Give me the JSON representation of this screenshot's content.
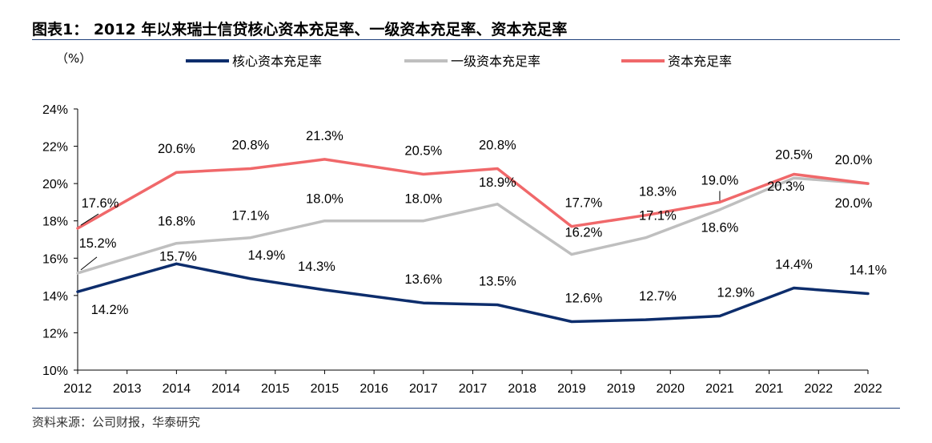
{
  "title": "图表1： 2012 年以来瑞士信贷核心资本充足率、一级资本充足率、资本充足率",
  "source": "资料来源：公司财报，华泰研究",
  "chart_data": {
    "type": "line",
    "unit_label": "（%）",
    "x_tick_labels": [
      "2012",
      "2013",
      "2014",
      "2014",
      "2015",
      "2015",
      "2016",
      "2017",
      "2017",
      "2018",
      "2019",
      "2019",
      "2020",
      "2021",
      "2021",
      "2022",
      "2022"
    ],
    "ylim": [
      10,
      24
    ],
    "y_ticks": [
      10,
      12,
      14,
      16,
      18,
      20,
      22,
      24
    ],
    "y_tick_labels": [
      "10%",
      "12%",
      "14%",
      "16%",
      "18%",
      "20%",
      "22%",
      "24%"
    ],
    "grid": false,
    "legend_position": "top",
    "series": [
      {
        "name": "核心资本充足率",
        "color": "#0d2d6c",
        "values": [
          14.2,
          15.7,
          14.9,
          14.3,
          13.6,
          13.5,
          12.6,
          12.7,
          12.9,
          14.4,
          14.1
        ],
        "labels": [
          "14.2%",
          "",
          "14.9%",
          "14.3%",
          "13.6%",
          "13.5%",
          "12.6%",
          "12.7%",
          "12.9%",
          "14.4%",
          "14.1%"
        ]
      },
      {
        "name": "一级资本充足率",
        "color": "#bfbfbf",
        "values": [
          15.2,
          16.8,
          17.1,
          18.0,
          18.0,
          18.9,
          16.2,
          17.1,
          18.6,
          20.3,
          20.0
        ],
        "labels": [
          "15.2%",
          "16.8%",
          "17.1%",
          "18.0%",
          "18.0%",
          "18.9%",
          "16.2%",
          "17.1%",
          "18.6%",
          "20.3%",
          "20.0%"
        ]
      },
      {
        "name": "资本充足率",
        "color": "#f0686a",
        "values": [
          17.6,
          20.6,
          20.8,
          21.3,
          20.5,
          20.8,
          17.7,
          18.3,
          19.0,
          20.5,
          20.0
        ],
        "labels": [
          "17.6%",
          "20.6%",
          "20.8%",
          "21.3%",
          "20.5%",
          "20.8%",
          "17.7%",
          "18.3%",
          "19.0%",
          "20.5%",
          "20.0%"
        ]
      }
    ],
    "extra_labels": [
      "15.7%"
    ]
  }
}
